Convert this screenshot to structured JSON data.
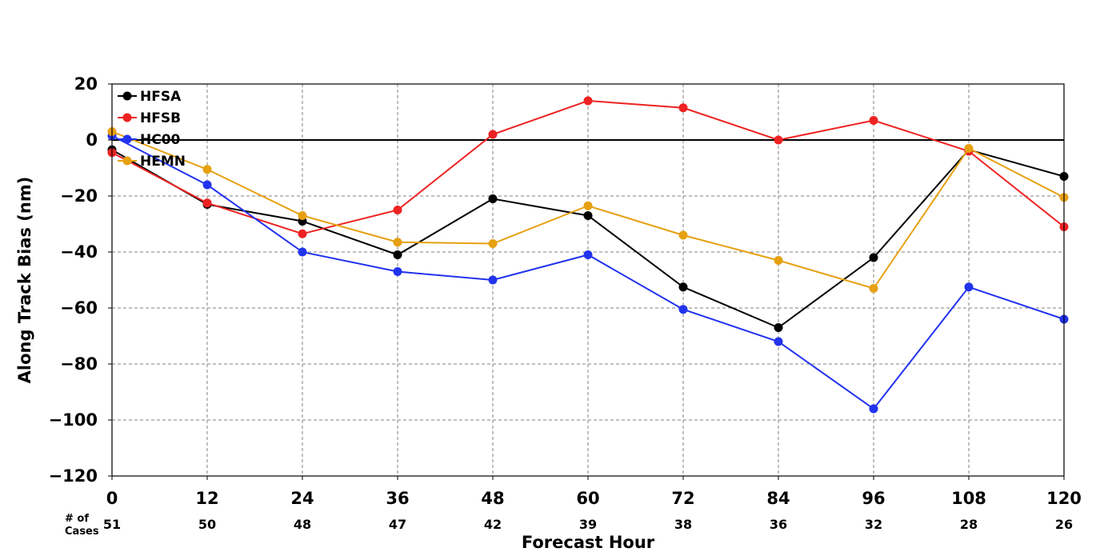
{
  "chart_data": {
    "type": "line",
    "xlabel": "Forecast Hour",
    "ylabel": "Along Track Bias (nm)",
    "x": [
      0,
      12,
      24,
      36,
      48,
      60,
      72,
      84,
      96,
      108,
      120
    ],
    "xlim": [
      0,
      120
    ],
    "ylim": [
      -120,
      20
    ],
    "yticks": [
      20,
      0,
      -20,
      -40,
      -60,
      -80,
      -100,
      -120
    ],
    "ytick_labels": [
      "20",
      "0",
      "−20",
      "−40",
      "−60",
      "−80",
      "−100",
      "−120"
    ],
    "xtick_labels": [
      "0",
      "12",
      "24",
      "36",
      "48",
      "60",
      "72",
      "84",
      "96",
      "108",
      "120"
    ],
    "grid": true,
    "zero_line": true,
    "legend_position": "top-left",
    "cases_header": [
      "# of",
      "Cases"
    ],
    "cases": [
      "51",
      "50",
      "48",
      "47",
      "42",
      "39",
      "38",
      "36",
      "32",
      "28",
      "26"
    ],
    "series": [
      {
        "name": "HFSA",
        "color": "#000000",
        "values": [
          -3.5,
          -23,
          -29,
          -41,
          -21,
          -27,
          -52.5,
          -67,
          -42,
          -3.5,
          -13
        ]
      },
      {
        "name": "HFSB",
        "color": "#ee2222",
        "values": [
          -4.5,
          -22.5,
          -33.5,
          -25,
          2,
          14,
          11.5,
          0,
          7,
          -4,
          -31
        ]
      },
      {
        "name": "HC00",
        "color": "#2233ee",
        "values": [
          1.5,
          -16,
          -40,
          -47,
          -50,
          -41,
          -60.5,
          -72,
          -96,
          -52.5,
          -64
        ]
      },
      {
        "name": "HEMN",
        "color": "#e6a010",
        "values": [
          3,
          -10.5,
          -27,
          -36.5,
          -37,
          -23.5,
          -34,
          -43,
          -53,
          -3,
          -20.5
        ]
      }
    ]
  }
}
